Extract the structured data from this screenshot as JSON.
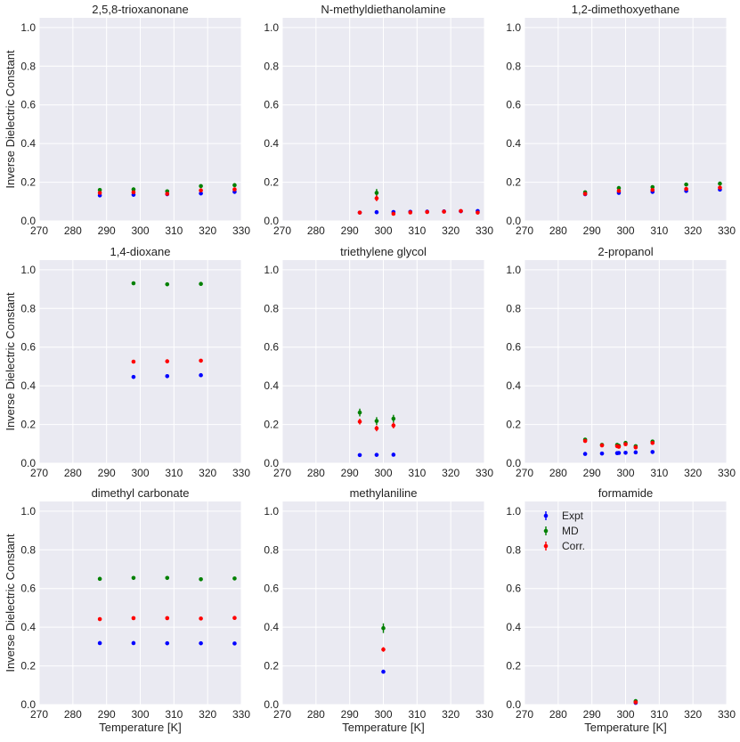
{
  "figure": {
    "xlabel": "Temperature [K]",
    "ylabel": "Inverse Dielectric Constant",
    "xlim": [
      270,
      330
    ],
    "ylim": [
      0,
      1.05
    ],
    "xticks": [
      270,
      280,
      290,
      300,
      310,
      320,
      330
    ],
    "yticks": [
      0.0,
      0.2,
      0.4,
      0.6,
      0.8,
      1.0
    ],
    "ytick_labels": [
      "0.0",
      "0.2",
      "0.4",
      "0.6",
      "0.8",
      "1.0"
    ],
    "legend": [
      {
        "name": "Expt",
        "color": "#0000ff"
      },
      {
        "name": "MD",
        "color": "#008000"
      },
      {
        "name": "Corr.",
        "color": "#ff0000"
      }
    ],
    "colors": {
      "background": "#eaeaf2",
      "grid": "#ffffff",
      "expt": "#0000ff",
      "md": "#008000",
      "corr": "#ff0000"
    }
  },
  "chart_data": [
    {
      "type": "scatter",
      "title": "2,5,8-trioxanonane",
      "x": [
        288,
        298,
        308,
        318,
        328
      ],
      "series": [
        {
          "name": "Expt",
          "values": [
            0.132,
            0.135,
            0.138,
            0.142,
            0.15
          ],
          "err": [
            0.003,
            0.003,
            0.003,
            0.003,
            0.003
          ]
        },
        {
          "name": "MD",
          "values": [
            0.16,
            0.163,
            0.153,
            0.18,
            0.185
          ],
          "err": [
            0.004,
            0.004,
            0.004,
            0.004,
            0.004
          ]
        },
        {
          "name": "Corr.",
          "values": [
            0.145,
            0.148,
            0.14,
            0.158,
            0.163
          ],
          "err": [
            0.004,
            0.004,
            0.004,
            0.004,
            0.004
          ]
        }
      ]
    },
    {
      "type": "scatter",
      "title": "N-methyldiethanolamine",
      "x": [
        293,
        298,
        303,
        308,
        313,
        318,
        323,
        328
      ],
      "series": [
        {
          "name": "Expt",
          "values": [
            0.043,
            0.045,
            0.046,
            0.047,
            0.048,
            0.049,
            0.05,
            0.051
          ],
          "err": [
            0.002,
            0.002,
            0.002,
            0.002,
            0.002,
            0.002,
            0.002,
            0.002
          ]
        },
        {
          "name": "MD",
          "values": [
            null,
            0.145,
            null,
            null,
            null,
            null,
            null,
            null
          ],
          "err": [
            0,
            0.02,
            0,
            0,
            0,
            0,
            0,
            0
          ]
        },
        {
          "name": "Corr.",
          "values": [
            0.043,
            0.117,
            0.037,
            0.044,
            0.046,
            0.048,
            0.051,
            0.043
          ],
          "err": [
            0.002,
            0.015,
            0.002,
            0.002,
            0.002,
            0.002,
            0.002,
            0.002
          ]
        }
      ]
    },
    {
      "type": "scatter",
      "title": "1,2-dimethoxyethane",
      "x": [
        288,
        298,
        308,
        318,
        328
      ],
      "series": [
        {
          "name": "Expt",
          "values": [
            0.138,
            0.145,
            0.15,
            0.155,
            0.162
          ],
          "err": [
            0.003,
            0.003,
            0.003,
            0.003,
            0.003
          ]
        },
        {
          "name": "MD",
          "values": [
            0.148,
            0.17,
            0.175,
            0.188,
            0.193
          ],
          "err": [
            0.004,
            0.004,
            0.004,
            0.004,
            0.004
          ]
        },
        {
          "name": "Corr.",
          "values": [
            0.14,
            0.155,
            0.16,
            0.165,
            0.172
          ],
          "err": [
            0.004,
            0.004,
            0.004,
            0.004,
            0.004
          ]
        }
      ]
    },
    {
      "type": "scatter",
      "title": "1,4-dioxane",
      "x": [
        298,
        308,
        318
      ],
      "series": [
        {
          "name": "Expt",
          "values": [
            0.446,
            0.45,
            0.455
          ],
          "err": [
            0.003,
            0.003,
            0.003
          ]
        },
        {
          "name": "MD",
          "values": [
            0.93,
            0.925,
            0.927
          ],
          "err": [
            0.004,
            0.004,
            0.004
          ]
        },
        {
          "name": "Corr.",
          "values": [
            0.525,
            0.527,
            0.53
          ],
          "err": [
            0.004,
            0.004,
            0.004
          ]
        }
      ]
    },
    {
      "type": "scatter",
      "title": "triethylene glycol",
      "x": [
        293,
        298,
        303
      ],
      "series": [
        {
          "name": "Expt",
          "values": [
            0.042,
            0.043,
            0.044
          ],
          "err": [
            0.002,
            0.002,
            0.002
          ]
        },
        {
          "name": "MD",
          "values": [
            0.262,
            0.218,
            0.23
          ],
          "err": [
            0.02,
            0.02,
            0.02
          ]
        },
        {
          "name": "Corr.",
          "values": [
            0.215,
            0.18,
            0.195
          ],
          "err": [
            0.015,
            0.015,
            0.015
          ]
        }
      ]
    },
    {
      "type": "scatter",
      "title": "2-propanol",
      "x": [
        288,
        293,
        297.5,
        298,
        300,
        303,
        308
      ],
      "series": [
        {
          "name": "Expt",
          "values": [
            0.048,
            0.05,
            0.052,
            0.053,
            0.054,
            0.056,
            0.058
          ],
          "err": [
            0.002,
            0.002,
            0.002,
            0.002,
            0.002,
            0.002,
            0.002
          ]
        },
        {
          "name": "MD",
          "values": [
            0.122,
            0.095,
            0.095,
            0.09,
            0.105,
            0.088,
            0.112
          ],
          "err": [
            0.006,
            0.006,
            0.006,
            0.006,
            0.006,
            0.006,
            0.006
          ]
        },
        {
          "name": "Corr.",
          "values": [
            0.115,
            0.092,
            0.088,
            0.085,
            0.098,
            0.082,
            0.105
          ],
          "err": [
            0.006,
            0.006,
            0.006,
            0.006,
            0.006,
            0.006,
            0.006
          ]
        }
      ]
    },
    {
      "type": "scatter",
      "title": "dimethyl carbonate",
      "x": [
        288,
        298,
        308,
        318,
        328
      ],
      "series": [
        {
          "name": "Expt",
          "values": [
            0.318,
            0.318,
            0.317,
            0.317,
            0.316
          ],
          "err": [
            0.003,
            0.003,
            0.003,
            0.003,
            0.003
          ]
        },
        {
          "name": "MD",
          "values": [
            0.65,
            0.655,
            0.655,
            0.648,
            0.652
          ],
          "err": [
            0.004,
            0.004,
            0.004,
            0.004,
            0.004
          ]
        },
        {
          "name": "Corr.",
          "values": [
            0.442,
            0.447,
            0.447,
            0.445,
            0.448
          ],
          "err": [
            0.004,
            0.004,
            0.004,
            0.004,
            0.004
          ]
        }
      ]
    },
    {
      "type": "scatter",
      "title": "methylaniline",
      "x": [
        300
      ],
      "series": [
        {
          "name": "Expt",
          "values": [
            0.17
          ],
          "err": [
            0.004
          ]
        },
        {
          "name": "MD",
          "values": [
            0.395
          ],
          "err": [
            0.025
          ]
        },
        {
          "name": "Corr.",
          "values": [
            0.285
          ],
          "err": [
            0.012
          ]
        }
      ]
    },
    {
      "type": "scatter",
      "title": "formamide",
      "x": [
        303
      ],
      "legend_position": "top-left",
      "series": [
        {
          "name": "Expt",
          "values": [
            0.009
          ],
          "err": [
            0.002
          ]
        },
        {
          "name": "MD",
          "values": [
            0.018
          ],
          "err": [
            0.003
          ]
        },
        {
          "name": "Corr.",
          "values": [
            0.012
          ],
          "err": [
            0.003
          ]
        }
      ]
    }
  ]
}
